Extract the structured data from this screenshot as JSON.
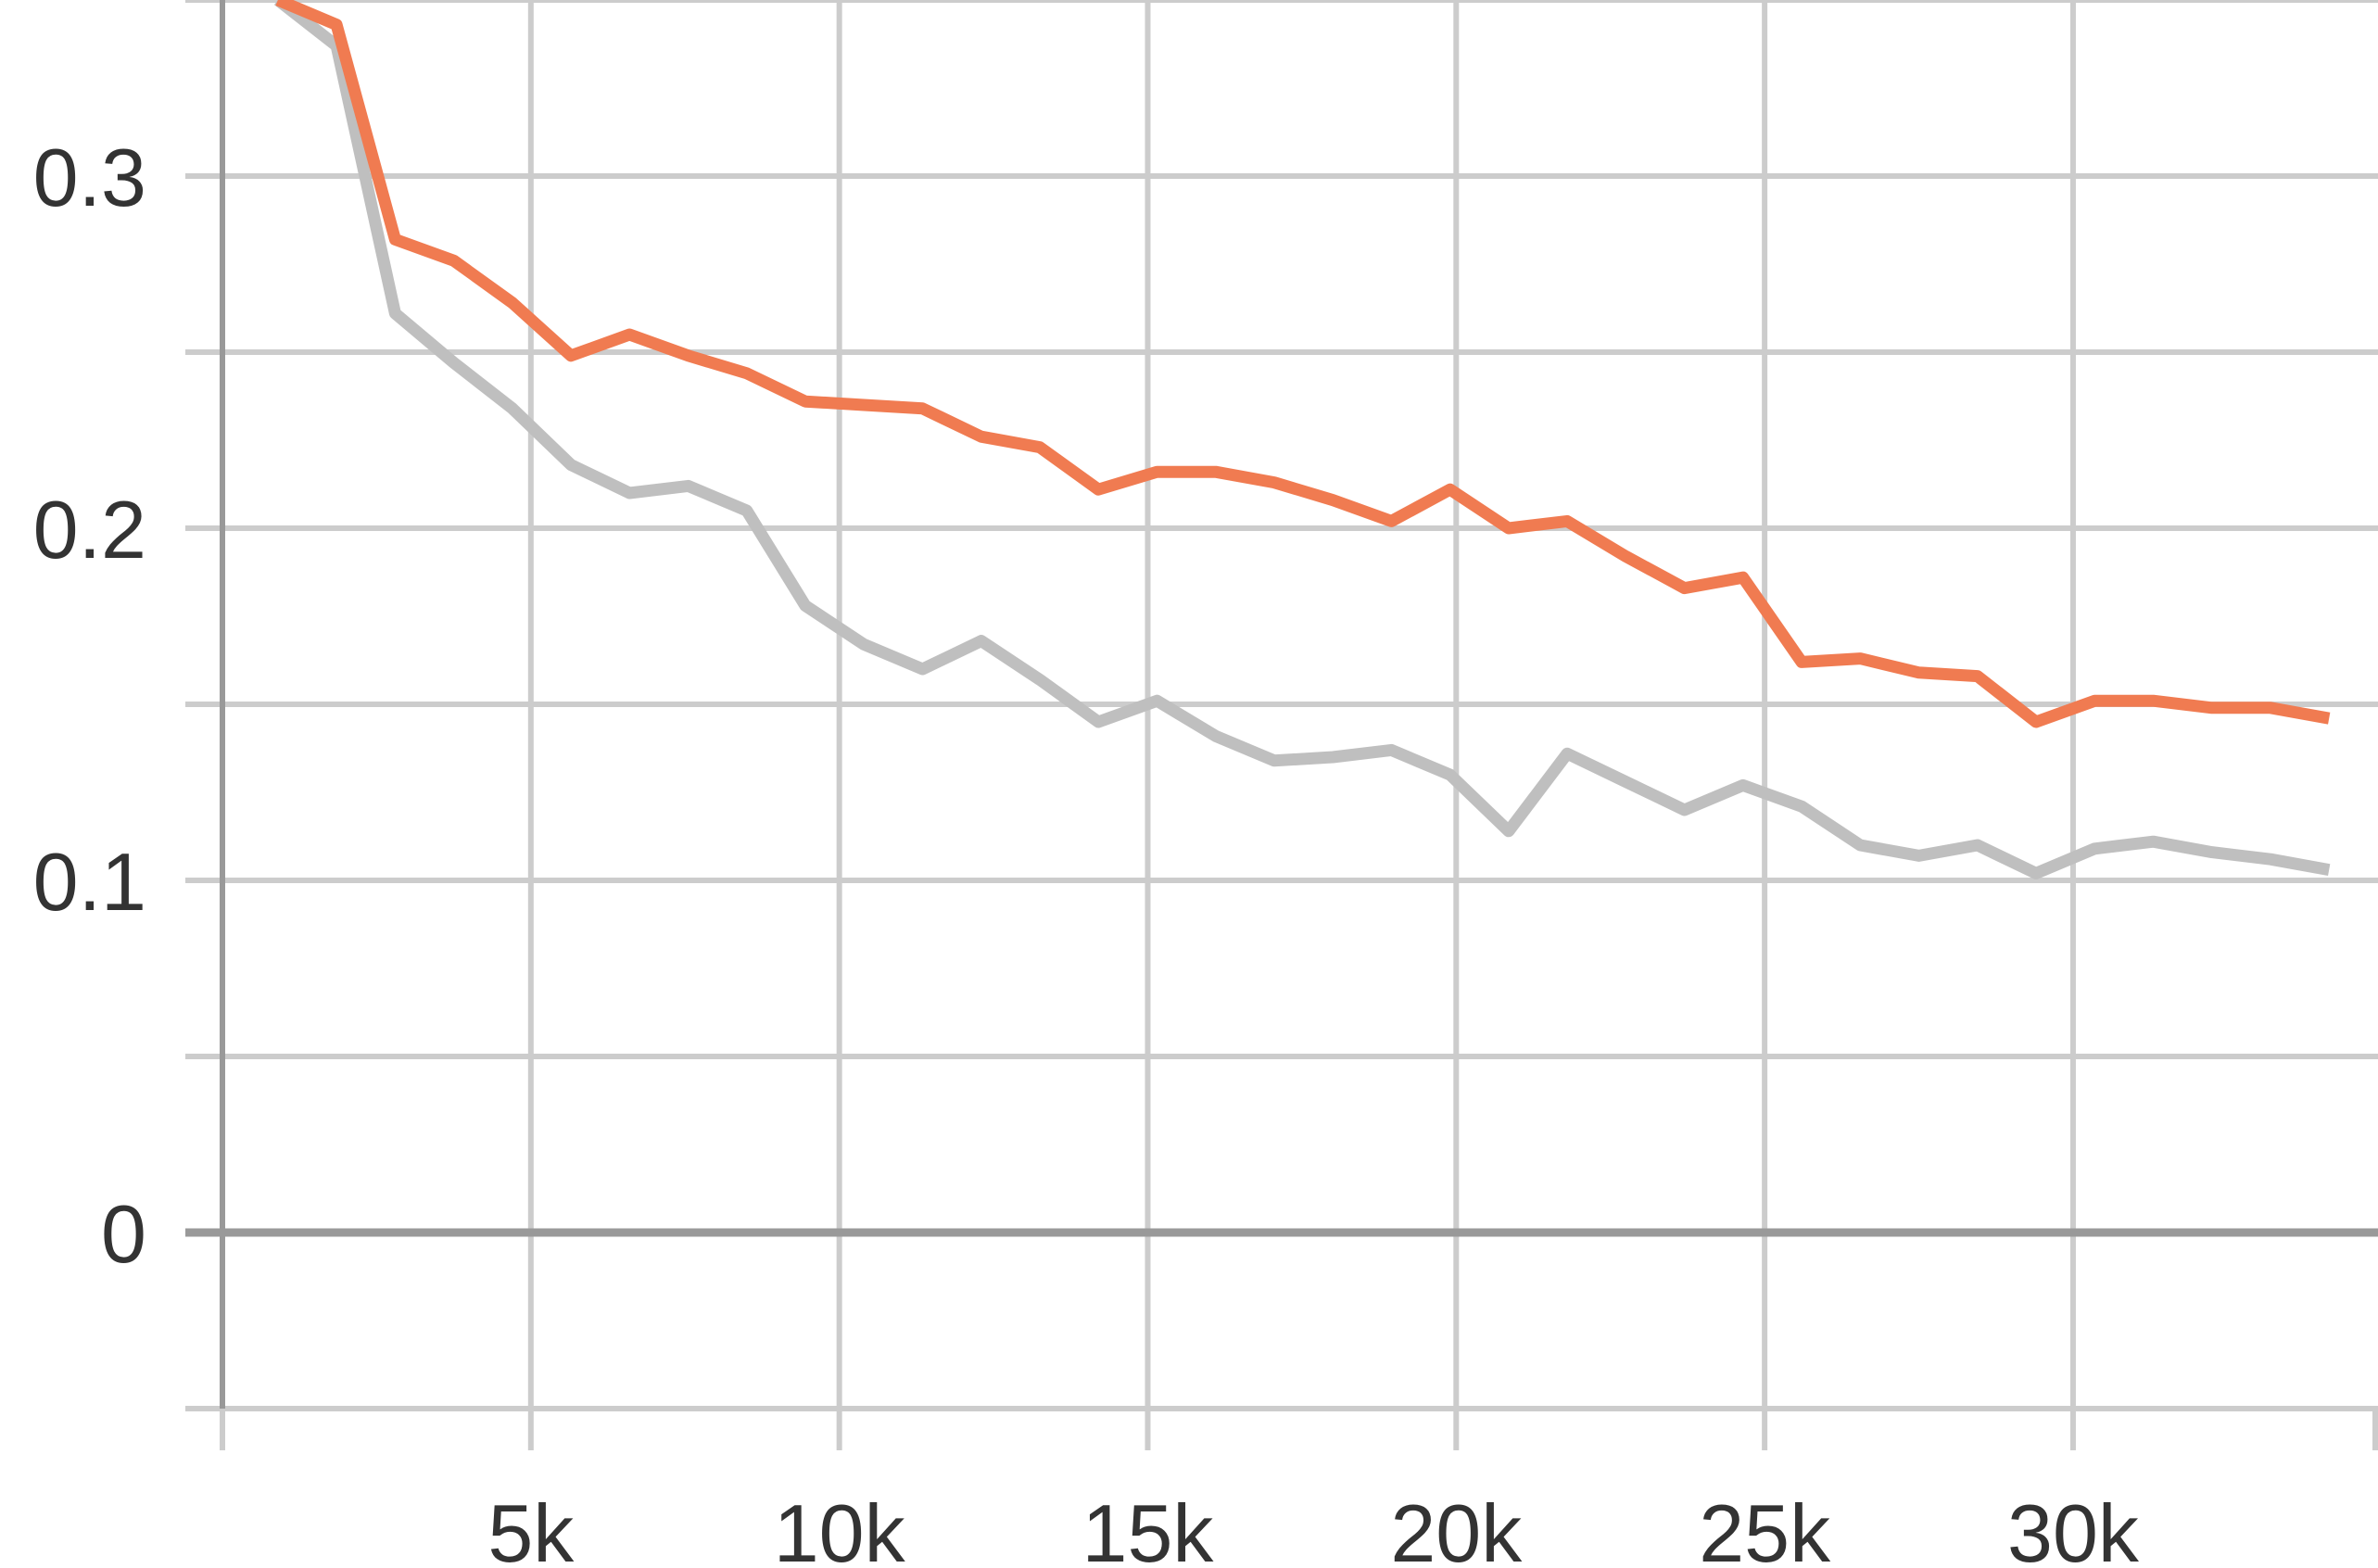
{
  "chart_data": {
    "type": "line",
    "title": "",
    "xlabel": "",
    "ylabel": "",
    "xlim": [
      0,
      34943
    ],
    "ylim": [
      -0.05,
      0.35
    ],
    "grid": true,
    "x_ticks": [
      5000,
      10000,
      15000,
      20000,
      25000,
      30000
    ],
    "x_tick_labels": [
      "5k",
      "10k",
      "15k",
      "20k",
      "25k",
      "30k"
    ],
    "y_ticks": [
      0,
      0.1,
      0.2,
      0.3
    ],
    "y_tick_labels": [
      "0",
      "0.1",
      "0.2",
      "0.3"
    ],
    "series": [
      {
        "color": "#f07b51",
        "x": [
          900,
          1850,
          2800,
          3750,
          4700,
          5650,
          6600,
          7550,
          8500,
          9450,
          10400,
          11350,
          12300,
          13250,
          14200,
          15150,
          16100,
          17050,
          18000,
          18950,
          19900,
          20850,
          21800,
          22750,
          23700,
          24650,
          25600,
          26550,
          27500,
          28450,
          29400,
          30350,
          31300,
          32250,
          33200,
          34150
        ],
        "y": [
          0.35,
          0.343,
          0.282,
          0.276,
          0.264,
          0.249,
          0.255,
          0.249,
          0.244,
          0.236,
          0.235,
          0.234,
          0.226,
          0.223,
          0.211,
          0.216,
          0.216,
          0.213,
          0.208,
          0.202,
          0.211,
          0.2,
          0.202,
          0.192,
          0.183,
          0.186,
          0.162,
          0.163,
          0.159,
          0.158,
          0.145,
          0.151,
          0.151,
          0.149,
          0.149,
          0.146
        ]
      },
      {
        "color": "#bfbfbf",
        "x": [
          900,
          1850,
          2800,
          3750,
          4700,
          5650,
          6600,
          7550,
          8500,
          9450,
          10400,
          11350,
          12300,
          13250,
          14200,
          15150,
          16100,
          17050,
          18000,
          18950,
          19900,
          20850,
          21800,
          22750,
          23700,
          24650,
          25600,
          26550,
          27500,
          28450,
          29400,
          30350,
          31300,
          32250,
          33200,
          34150
        ],
        "y": [
          0.35,
          0.337,
          0.261,
          0.247,
          0.234,
          0.218,
          0.21,
          0.212,
          0.205,
          0.178,
          0.167,
          0.16,
          0.168,
          0.157,
          0.145,
          0.151,
          0.141,
          0.134,
          0.135,
          0.137,
          0.13,
          0.114,
          0.136,
          0.128,
          0.12,
          0.127,
          0.121,
          0.11,
          0.107,
          0.11,
          0.102,
          0.109,
          0.111,
          0.108,
          0.106,
          0.103
        ]
      }
    ]
  }
}
